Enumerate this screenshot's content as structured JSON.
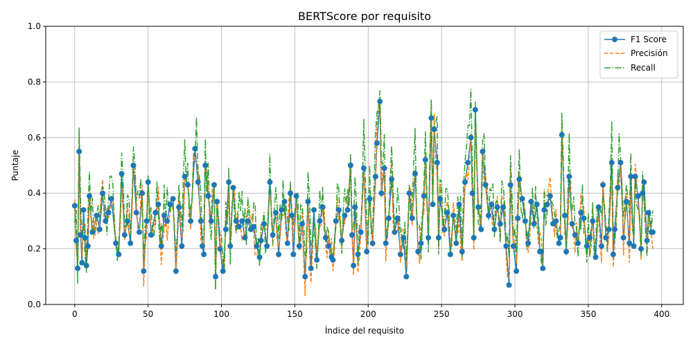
{
  "chart_data": {
    "type": "line",
    "title": "BERTScore por requisito",
    "xlabel": "Índice del requisito",
    "ylabel": "Puntaje",
    "xlim": [
      -19.75,
      414.75
    ],
    "ylim": [
      0.0,
      1.0
    ],
    "xticks": [
      "0",
      "50",
      "100",
      "150",
      "200",
      "250",
      "300",
      "350",
      "400"
    ],
    "yticks": [
      "0.0",
      "0.2",
      "0.4",
      "0.6",
      "0.8",
      "1.0"
    ],
    "grid": true,
    "legend": "top-right",
    "n_points": 395,
    "series": [
      {
        "name": "F1 Score",
        "color": "#1f77b4",
        "style": "solid-marker",
        "anchors": [
          [
            0,
            0.355
          ],
          [
            1,
            0.23
          ],
          [
            2,
            0.13
          ],
          [
            3,
            0.55
          ],
          [
            4,
            0.25
          ],
          [
            5,
            0.15
          ],
          [
            6,
            0.34
          ],
          [
            7,
            0.24
          ],
          [
            8,
            0.14
          ],
          [
            9,
            0.21
          ],
          [
            10,
            0.39
          ],
          [
            12,
            0.26
          ],
          [
            15,
            0.32
          ],
          [
            17,
            0.27
          ],
          [
            19,
            0.4
          ],
          [
            21,
            0.3
          ],
          [
            23,
            0.33
          ],
          [
            25,
            0.38
          ],
          [
            28,
            0.22
          ],
          [
            30,
            0.18
          ],
          [
            32,
            0.47
          ],
          [
            34,
            0.25
          ],
          [
            36,
            0.3
          ],
          [
            38,
            0.22
          ],
          [
            40,
            0.5
          ],
          [
            42,
            0.33
          ],
          [
            44,
            0.26
          ],
          [
            46,
            0.4
          ],
          [
            47,
            0.12
          ],
          [
            49,
            0.3
          ],
          [
            50,
            0.44
          ],
          [
            52,
            0.25
          ],
          [
            55,
            0.33
          ],
          [
            57,
            0.36
          ],
          [
            59,
            0.21
          ],
          [
            61,
            0.32
          ],
          [
            63,
            0.3
          ],
          [
            65,
            0.36
          ],
          [
            67,
            0.38
          ],
          [
            69,
            0.12
          ],
          [
            71,
            0.35
          ],
          [
            73,
            0.21
          ],
          [
            75,
            0.46
          ],
          [
            77,
            0.43
          ],
          [
            79,
            0.3
          ],
          [
            82,
            0.56
          ],
          [
            84,
            0.44
          ],
          [
            86,
            0.3
          ],
          [
            87,
            0.21
          ],
          [
            88,
            0.18
          ],
          [
            89,
            0.5
          ],
          [
            91,
            0.39
          ],
          [
            93,
            0.3
          ],
          [
            95,
            0.43
          ],
          [
            96,
            0.1
          ],
          [
            97,
            0.37
          ],
          [
            99,
            0.2
          ],
          [
            101,
            0.12
          ],
          [
            103,
            0.27
          ],
          [
            105,
            0.44
          ],
          [
            106,
            0.21
          ],
          [
            108,
            0.42
          ],
          [
            110,
            0.3
          ],
          [
            112,
            0.28
          ],
          [
            114,
            0.3
          ],
          [
            116,
            0.24
          ],
          [
            118,
            0.3
          ],
          [
            120,
            0.27
          ],
          [
            122,
            0.28
          ],
          [
            124,
            0.21
          ],
          [
            126,
            0.17
          ],
          [
            127,
            0.23
          ],
          [
            129,
            0.29
          ],
          [
            131,
            0.21
          ],
          [
            133,
            0.44
          ],
          [
            135,
            0.25
          ],
          [
            137,
            0.33
          ],
          [
            139,
            0.18
          ],
          [
            141,
            0.34
          ],
          [
            143,
            0.37
          ],
          [
            145,
            0.22
          ],
          [
            147,
            0.4
          ],
          [
            148,
            0.32
          ],
          [
            149,
            0.18
          ],
          [
            151,
            0.39
          ],
          [
            153,
            0.21
          ],
          [
            155,
            0.29
          ],
          [
            157,
            0.1
          ],
          [
            159,
            0.37
          ],
          [
            161,
            0.13
          ],
          [
            163,
            0.34
          ],
          [
            165,
            0.16
          ],
          [
            167,
            0.3
          ],
          [
            169,
            0.35
          ],
          [
            171,
            0.24
          ],
          [
            173,
            0.21
          ],
          [
            175,
            0.17
          ],
          [
            176,
            0.16
          ],
          [
            178,
            0.3
          ],
          [
            180,
            0.34
          ],
          [
            182,
            0.23
          ],
          [
            184,
            0.32
          ],
          [
            186,
            0.34
          ],
          [
            188,
            0.5
          ],
          [
            189,
            0.25
          ],
          [
            190,
            0.14
          ],
          [
            191,
            0.35
          ],
          [
            193,
            0.18
          ],
          [
            195,
            0.26
          ],
          [
            197,
            0.49
          ],
          [
            199,
            0.19
          ],
          [
            201,
            0.38
          ],
          [
            203,
            0.22
          ],
          [
            205,
            0.46
          ],
          [
            206,
            0.58
          ],
          [
            208,
            0.73
          ],
          [
            209,
            0.4
          ],
          [
            211,
            0.49
          ],
          [
            212,
            0.22
          ],
          [
            214,
            0.31
          ],
          [
            216,
            0.45
          ],
          [
            218,
            0.26
          ],
          [
            220,
            0.31
          ],
          [
            222,
            0.18
          ],
          [
            224,
            0.24
          ],
          [
            226,
            0.1
          ],
          [
            228,
            0.4
          ],
          [
            230,
            0.31
          ],
          [
            232,
            0.47
          ],
          [
            234,
            0.19
          ],
          [
            236,
            0.22
          ],
          [
            238,
            0.39
          ],
          [
            239,
            0.52
          ],
          [
            241,
            0.24
          ],
          [
            243,
            0.67
          ],
          [
            244,
            0.36
          ],
          [
            245,
            0.63
          ],
          [
            247,
            0.51
          ],
          [
            248,
            0.24
          ],
          [
            249,
            0.38
          ],
          [
            252,
            0.27
          ],
          [
            254,
            0.33
          ],
          [
            256,
            0.18
          ],
          [
            258,
            0.32
          ],
          [
            260,
            0.22
          ],
          [
            262,
            0.36
          ],
          [
            264,
            0.19
          ],
          [
            266,
            0.44
          ],
          [
            268,
            0.51
          ],
          [
            270,
            0.6
          ],
          [
            271,
            0.4
          ],
          [
            272,
            0.24
          ],
          [
            273,
            0.7
          ],
          [
            275,
            0.35
          ],
          [
            277,
            0.27
          ],
          [
            278,
            0.55
          ],
          [
            280,
            0.43
          ],
          [
            282,
            0.32
          ],
          [
            284,
            0.36
          ],
          [
            286,
            0.27
          ],
          [
            288,
            0.35
          ],
          [
            290,
            0.29
          ],
          [
            292,
            0.35
          ],
          [
            294,
            0.21
          ],
          [
            296,
            0.07
          ],
          [
            297,
            0.43
          ],
          [
            299,
            0.21
          ],
          [
            301,
            0.12
          ],
          [
            302,
            0.31
          ],
          [
            303,
            0.45
          ],
          [
            305,
            0.38
          ],
          [
            307,
            0.3
          ],
          [
            309,
            0.22
          ],
          [
            311,
            0.37
          ],
          [
            313,
            0.29
          ],
          [
            315,
            0.36
          ],
          [
            317,
            0.19
          ],
          [
            318,
            0.19
          ],
          [
            319,
            0.13
          ],
          [
            320,
            0.34
          ],
          [
            322,
            0.36
          ],
          [
            324,
            0.39
          ],
          [
            326,
            0.29
          ],
          [
            328,
            0.3
          ],
          [
            330,
            0.22
          ],
          [
            331,
            0.24
          ],
          [
            332,
            0.61
          ],
          [
            334,
            0.32
          ],
          [
            335,
            0.19
          ],
          [
            337,
            0.46
          ],
          [
            339,
            0.29
          ],
          [
            341,
            0.25
          ],
          [
            343,
            0.22
          ],
          [
            345,
            0.33
          ],
          [
            347,
            0.31
          ],
          [
            349,
            0.21
          ],
          [
            351,
            0.24
          ],
          [
            353,
            0.3
          ],
          [
            355,
            0.17
          ],
          [
            357,
            0.35
          ],
          [
            359,
            0.21
          ],
          [
            360,
            0.43
          ],
          [
            362,
            0.24
          ],
          [
            364,
            0.27
          ],
          [
            366,
            0.51
          ],
          [
            367,
            0.18
          ],
          [
            368,
            0.27
          ],
          [
            370,
            0.42
          ],
          [
            372,
            0.51
          ],
          [
            374,
            0.24
          ],
          [
            376,
            0.37
          ],
          [
            378,
            0.22
          ],
          [
            379,
            0.46
          ],
          [
            381,
            0.21
          ],
          [
            382,
            0.46
          ],
          [
            384,
            0.39
          ],
          [
            386,
            0.2
          ],
          [
            387,
            0.4
          ],
          [
            388,
            0.44
          ],
          [
            390,
            0.23
          ],
          [
            391,
            0.33
          ],
          [
            393,
            0.26
          ],
          [
            394,
            0.26
          ]
        ]
      },
      {
        "name": "Precisión",
        "color": "#ff7f0e",
        "style": "dashed"
      },
      {
        "name": "Recall",
        "color": "#2ca02c",
        "style": "dashdot"
      }
    ]
  }
}
